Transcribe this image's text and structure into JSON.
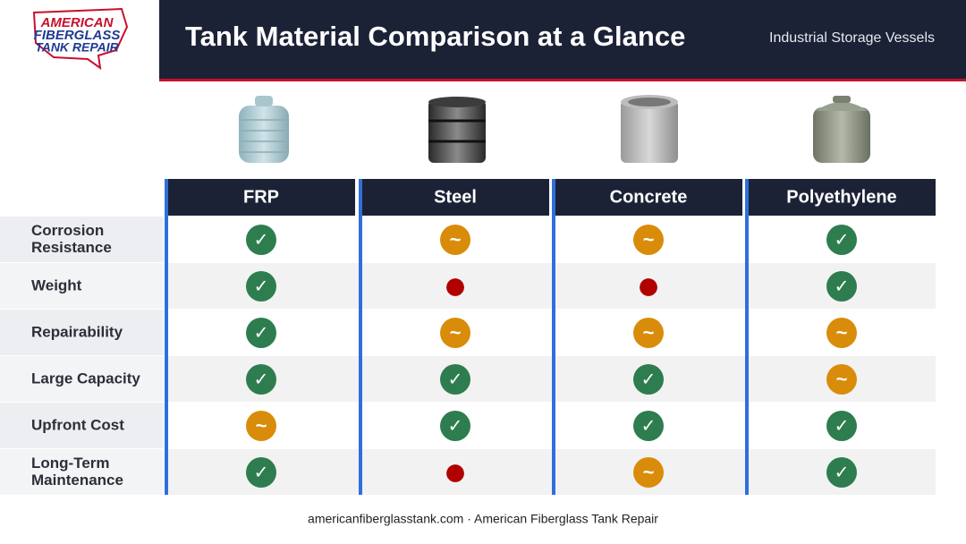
{
  "logo": {
    "lines": [
      "AMERICAN",
      "FIBERGLASS",
      "TANK REPAIR"
    ]
  },
  "header": {
    "title": "Tank Material Comparison at a Glance",
    "subtitle": "Industrial Storage Vessels"
  },
  "table": {
    "columns": [
      "FRP",
      "Steel",
      "Concrete",
      "Polyethylene"
    ],
    "rows": [
      {
        "label": [
          "Corrosion",
          "Resistance"
        ],
        "cells": [
          "✓",
          "~",
          "~",
          "✓"
        ]
      },
      {
        "label": [
          "Weight"
        ],
        "cells": [
          "✓",
          "●",
          "●",
          "✓"
        ]
      },
      {
        "label": [
          "Repairability"
        ],
        "cells": [
          "✓",
          "~",
          "~",
          "~"
        ]
      },
      {
        "label": [
          "Large Capacity"
        ],
        "cells": [
          "✓",
          "✓",
          "✓",
          "~"
        ]
      },
      {
        "label": [
          "Upfront Cost"
        ],
        "cells": [
          "~",
          "✓",
          "✓",
          "✓"
        ]
      },
      {
        "label": [
          "Long-Term",
          "Maintenance"
        ],
        "cells": [
          "✓",
          "●",
          "~",
          "✓"
        ]
      }
    ]
  },
  "footer": "americanfiberglasstank.com · American Fiberglass Tank Repair"
}
